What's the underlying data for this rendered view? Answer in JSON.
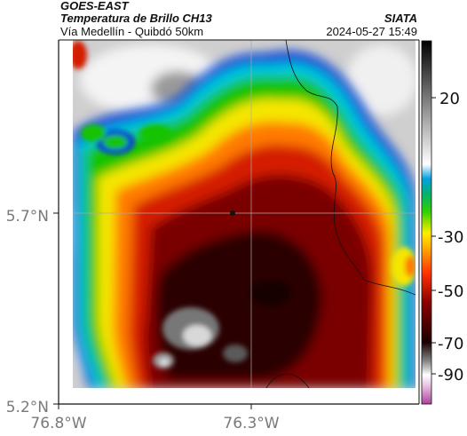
{
  "header": {
    "satellite": "GOES-EAST",
    "product": "Temperatura de Brillo CH13",
    "region": "Vía Medellín - Quibdó 50km",
    "agency": "SIATA",
    "datetime": "2024-05-27 15:49"
  },
  "map": {
    "lat_labels": [
      "5.7°N",
      "5.2°N"
    ],
    "lon_labels": [
      "76.8°W",
      "76.3°W"
    ],
    "colorbar_ticks": [
      "20",
      "-30",
      "-50",
      "-70",
      "-90"
    ],
    "colors": {
      "cold_core": "#2a0000",
      "deep_red": "#7a0000",
      "red": "#d41a00",
      "orange": "#ff7a00",
      "yellow": "#f5e600",
      "green": "#19c300",
      "cyan": "#00c8e0",
      "blue": "#0a3cd6",
      "warm_gray": "#d9d9d9",
      "magenta": "#c040a0"
    }
  }
}
